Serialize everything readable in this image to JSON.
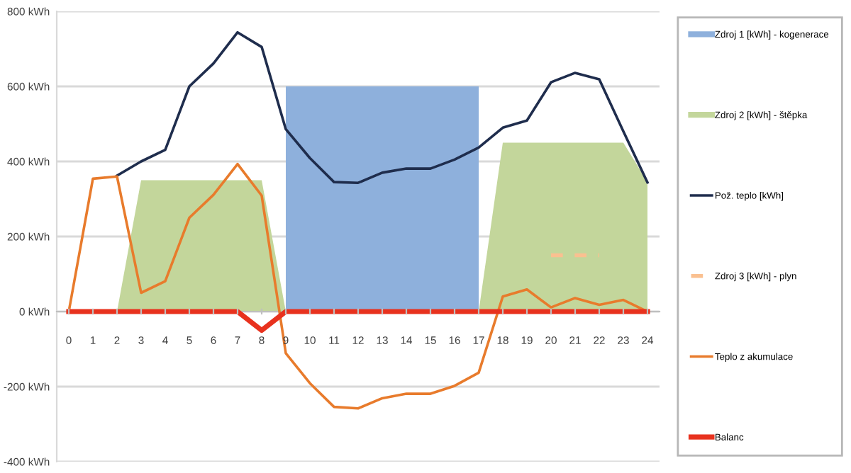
{
  "chart_data": {
    "type": "line",
    "xlim": [
      -0.5,
      24.5
    ],
    "xticks": [
      0,
      1,
      2,
      3,
      4,
      5,
      6,
      7,
      8,
      9,
      10,
      11,
      12,
      13,
      14,
      15,
      16,
      17,
      18,
      19,
      20,
      21,
      22,
      23,
      24
    ],
    "ylim": [
      -400,
      800
    ],
    "yticks": [
      {
        "value": -400,
        "label": "-400 kWh"
      },
      {
        "value": -200,
        "label": "-200 kWh"
      },
      {
        "value": 0,
        "label": "0 kWh"
      },
      {
        "value": 200,
        "label": "200 kWh"
      },
      {
        "value": 400,
        "label": "400 kWh"
      },
      {
        "value": 600,
        "label": "600 kWh"
      },
      {
        "value": 800,
        "label": "800 kWh"
      }
    ],
    "grid": "y",
    "legend": "right",
    "marker": "none",
    "series": [
      {
        "name": "Zdroj 1 [kWh] - kogenerace",
        "type": "area",
        "color": "#8eb0dc",
        "x": [
          9,
          9,
          17,
          17
        ],
        "values": [
          0,
          600,
          600,
          0
        ]
      },
      {
        "name": "Zdroj 2 [kWh] - štěpka",
        "type": "area",
        "color": "#c3d69b",
        "x": [
          2,
          3,
          8,
          9,
          17,
          18,
          23,
          24,
          24
        ],
        "values": [
          0,
          350,
          350,
          0,
          0,
          450,
          450,
          345,
          0
        ]
      },
      {
        "name": "Pož. teplo [kWh]",
        "color": "#1f2d4d",
        "x": [
          2,
          3,
          4,
          5,
          6,
          7,
          8,
          9,
          10,
          11,
          12,
          13,
          14,
          15,
          16,
          17,
          18,
          19,
          20,
          21,
          22,
          23,
          24
        ],
        "values": [
          362,
          400,
          431,
          600,
          661,
          744,
          705,
          486,
          409,
          345,
          343,
          370,
          381,
          381,
          405,
          437,
          490,
          509,
          611,
          636,
          619,
          480,
          344
        ]
      },
      {
        "name": "Zdroj 3 [kWh] - plyn",
        "line_style": "dashed",
        "color": "#fac090",
        "x": [
          20,
          21,
          22
        ],
        "values": [
          150,
          150,
          150
        ]
      },
      {
        "name": "Teplo z akumulace",
        "color": "#e87b2c",
        "x": [
          0,
          1,
          2,
          3,
          4,
          5,
          6,
          7,
          8,
          9,
          10,
          11,
          12,
          13,
          14,
          15,
          16,
          17,
          18,
          19,
          20,
          21,
          22,
          23,
          24
        ],
        "values": [
          0,
          354,
          360,
          50,
          81,
          250,
          311,
          393,
          309,
          -111,
          -191,
          -254,
          -258,
          -231,
          -219,
          -219,
          -198,
          -163,
          40,
          59,
          11,
          36,
          18,
          31,
          0
        ]
      },
      {
        "name": "Balanc",
        "color": "#e8321e",
        "x": [
          0,
          1,
          2,
          3,
          4,
          5,
          6,
          7,
          8,
          9,
          10,
          11,
          12,
          13,
          14,
          15,
          16,
          17,
          18,
          19,
          20,
          21,
          22,
          23,
          24
        ],
        "values": [
          0,
          0,
          0,
          0,
          0,
          0,
          0,
          0,
          -50,
          0,
          0,
          0,
          0,
          0,
          0,
          0,
          0,
          0,
          0,
          0,
          0,
          0,
          0,
          0,
          0
        ]
      }
    ]
  }
}
